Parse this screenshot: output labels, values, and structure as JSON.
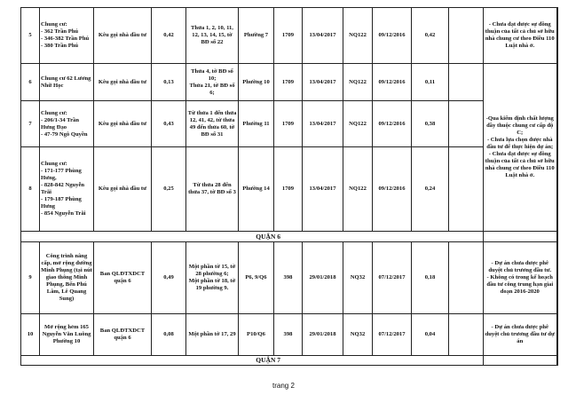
{
  "rows": [
    {
      "stt": "5",
      "name": "Chung cư:\n- 362 Trần Phú\n- 346-382 Trần Phú\n- 380 Trần Phú",
      "owner": "Kêu gọi nhà đầu tư",
      "area": "0,42",
      "parcel": "Thửa 1, 2, 10, 11, 12, 13, 14, 15, tờ BĐ số 22",
      "ward": "Phường 7",
      "res_no": "1709",
      "res_date": "13/04/2017",
      "nq": "NQ122",
      "nq_date": "09/12/2016",
      "area2": "0,42",
      "extra": ""
    },
    {
      "stt": "6",
      "name": "Chung cư 62 Lương Nhữ Học",
      "owner": "Kêu gọi nhà đầu tư",
      "area": "0,13",
      "parcel": "Thửa 4, tờ BĐ số 10;\nThửa 21, tờ BĐ số 6;",
      "ward": "Phường 10",
      "res_no": "1709",
      "res_date": "13/04/2017",
      "nq": "NQ122",
      "nq_date": "09/12/2016",
      "area2": "0,11",
      "extra": ""
    },
    {
      "stt": "7",
      "name": "Chung cư:\n- 206/1-34 Trần Hưng Đạo\n- 47-79 Ngô Quyền",
      "owner": "Kêu gọi nhà đầu tư",
      "area": "0,43",
      "parcel": "Từ thửa 1 đến thửa 12, 41, 42, từ thửa 49 đến thửa 60, tờ BĐ số 31",
      "ward": "Phường 11",
      "res_no": "1709",
      "res_date": "13/04/2017",
      "nq": "NQ122",
      "nq_date": "09/12/2016",
      "area2": "0,38",
      "extra": ""
    },
    {
      "stt": "8",
      "name": "Chung cư:\n- 171-177 Phùng Hưng,\n- 828-842 Nguyễn Trãi\n- 179-187 Phùng Hưng\n- 854 Nguyễn Trãi",
      "owner": "Kêu gọi nhà đầu tư",
      "area": "0,25",
      "parcel": "Từ thửa 28 đến thửa 37, tờ BĐ số 3",
      "ward": "Phường 14",
      "res_no": "1709",
      "res_date": "13/04/2017",
      "nq": "NQ122",
      "nq_date": "09/12/2016",
      "area2": "0,24",
      "extra": ""
    },
    {
      "stt": "9",
      "name": "Công trình nâng cấp, mở rộng đường Minh Phụng (tại nút giao thông Minh Phụng, Bến Phú Lâm, Lê Quang Sung)",
      "owner": "Ban QLĐTXDCT quận 6",
      "area": "0,49",
      "parcel": "Một phần tờ 15, tờ 28 phường 6;\nMột phần tờ 18, tờ 19 phường 9.",
      "ward": "P6, 9/Q6",
      "res_no": "398",
      "res_date": "29/01/2018",
      "nq": "NQ32",
      "nq_date": "07/12/2017",
      "area2": "0,18",
      "extra": ""
    },
    {
      "stt": "10",
      "name": "Mở rộng hẻm 165 Nguyễn Văn Luông Phường 10",
      "owner": "Ban QLĐTXDCT quận 6",
      "area": "0,08",
      "parcel": "Một phần tờ 17, 29",
      "ward": "P10/Q6",
      "res_no": "398",
      "res_date": "29/01/2018",
      "nq": "NQ32",
      "nq_date": "07/12/2017",
      "area2": "0,04",
      "extra": ""
    }
  ],
  "notes": {
    "row5": "- Chưa đạt được sự đồng thuận của tất cả chủ sở hữu nhà chung cư theo Điều 110 Luật nhà ở.",
    "rows6_8": "-Qua kiểm định chất lượng đầy thuộc chung cư cấp độ C;\n- Chưa lựa chọn được nhà đầu tư để thực hiện dự án;\n- Chưa đạt được sự đồng thuận của tất cả chủ sở hữu nhà chung cư theo Điều 110 Luật nhà ở.",
    "row9": "- Dự án chưa được phê duyệt chủ trương đầu tư.\n- Không có trong kế hoạch đầu tư công trung hạn giai đoạn 2016-2020",
    "row10": "- Dự án chưa được phê duyệt chủ trương đầu tư dự án"
  },
  "sections": {
    "q6": "QUẬN 6",
    "q7": "QUẬN 7"
  },
  "footer": "trang 2"
}
